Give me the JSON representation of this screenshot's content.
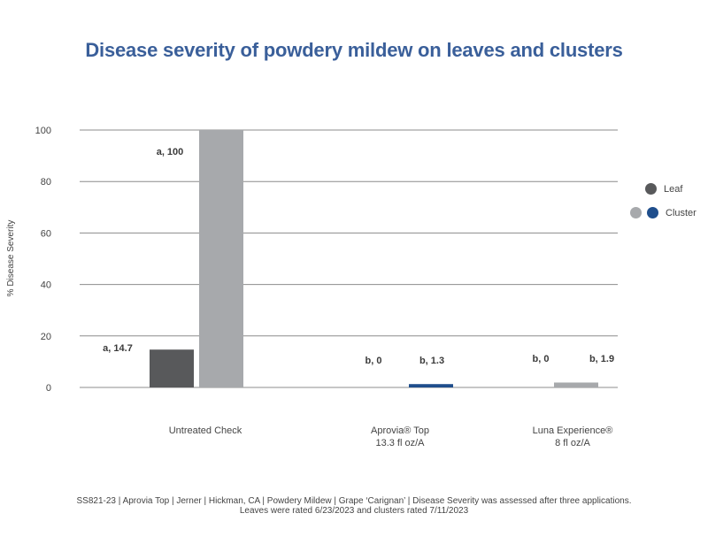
{
  "chart_data": {
    "type": "bar",
    "title": "Disease severity of powdery mildew on leaves and clusters",
    "ylabel": "% Disease Severity",
    "xlabel": "",
    "ylim": [
      0,
      100
    ],
    "yticks": [
      0,
      20,
      40,
      60,
      80,
      100
    ],
    "grid": true,
    "legend_position": "right",
    "categories": [
      {
        "line1": "Untreated Check",
        "line2": ""
      },
      {
        "line1": "Aprovia® Top",
        "line2": "13.3 fl oz/A"
      },
      {
        "line1": "Luna Experience®",
        "line2": "8 fl oz/A"
      }
    ],
    "series": [
      {
        "name": "Leaf",
        "values": [
          14.7,
          0,
          0
        ],
        "labels": [
          "a, 14.7",
          "b, 0",
          "b, 0"
        ],
        "colors": [
          "#58595b",
          "#58595b",
          "#58595b"
        ]
      },
      {
        "name": "Cluster",
        "values": [
          100,
          1.3,
          1.9
        ],
        "labels": [
          "a, 100",
          "b, 1.3",
          "b, 1.9"
        ],
        "colors": [
          "#a7a9ac",
          "#1f4e8c",
          "#a7a9ac"
        ]
      }
    ],
    "legend": [
      {
        "label": "Leaf",
        "colors": [
          "#58595b"
        ]
      },
      {
        "label": "Cluster",
        "colors": [
          "#a7a9ac",
          "#1f4e8c"
        ]
      }
    ]
  },
  "footnote": {
    "line1": "SS821-23 | Aprovia Top | Jerner | Hickman, CA | Powdery Mildew | Grape ‘Carignan’ | Disease Severity was assessed after three applications.",
    "line2": "Leaves were rated 6/23/2023 and clusters rated 7/11/2023"
  },
  "colors": {
    "title": "#3a5f9a",
    "grid": "#8c8c8c",
    "axis_text": "#444444"
  }
}
